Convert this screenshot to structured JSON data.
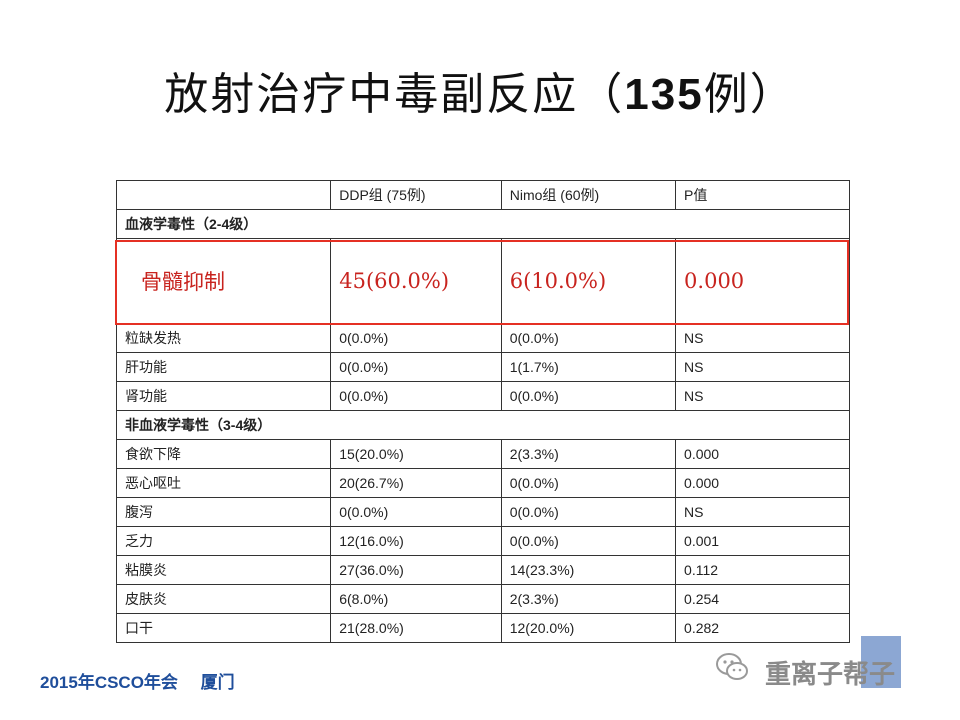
{
  "title": {
    "main": "放射治疗中毒副反应（",
    "count": "135",
    "suffix": "例）"
  },
  "table": {
    "header": [
      "",
      "DDP组 (75例)",
      "Nimo组 (60例)",
      "P值"
    ],
    "section1": "血液学毒性（2-4级）",
    "highlight": [
      "骨髓抑制",
      "45(60.0%)",
      "6(10.0%)",
      "0.000"
    ],
    "rows1": [
      [
        "粒缺发热",
        "0(0.0%)",
        "0(0.0%)",
        "NS"
      ],
      [
        "肝功能",
        "0(0.0%)",
        "1(1.7%)",
        "NS"
      ],
      [
        "肾功能",
        "0(0.0%)",
        "0(0.0%)",
        "NS"
      ]
    ],
    "section2": "非血液学毒性（3-4级）",
    "rows2": [
      [
        "食欲下降",
        "15(20.0%)",
        "2(3.3%)",
        "0.000"
      ],
      [
        "恶心呕吐",
        "20(26.7%)",
        "0(0.0%)",
        "0.000"
      ],
      [
        "腹泻",
        "0(0.0%)",
        "0(0.0%)",
        "NS"
      ],
      [
        "乏力",
        "12(16.0%)",
        "0(0.0%)",
        "0.001"
      ],
      [
        "粘膜炎",
        "27(36.0%)",
        "14(23.3%)",
        "0.112"
      ],
      [
        "皮肤炎",
        "6(8.0%)",
        "2(3.3%)",
        "0.254"
      ],
      [
        "口干",
        "21(28.0%)",
        "12(20.0%)",
        "0.282"
      ]
    ]
  },
  "footer": {
    "event": "2015年CSCO年会",
    "city": "厦门"
  },
  "watermark": {
    "text": "重离子帮子",
    "icon": "wechat-icon"
  },
  "colors": {
    "highlight": "#e53024",
    "footer": "#1f4e9b"
  }
}
